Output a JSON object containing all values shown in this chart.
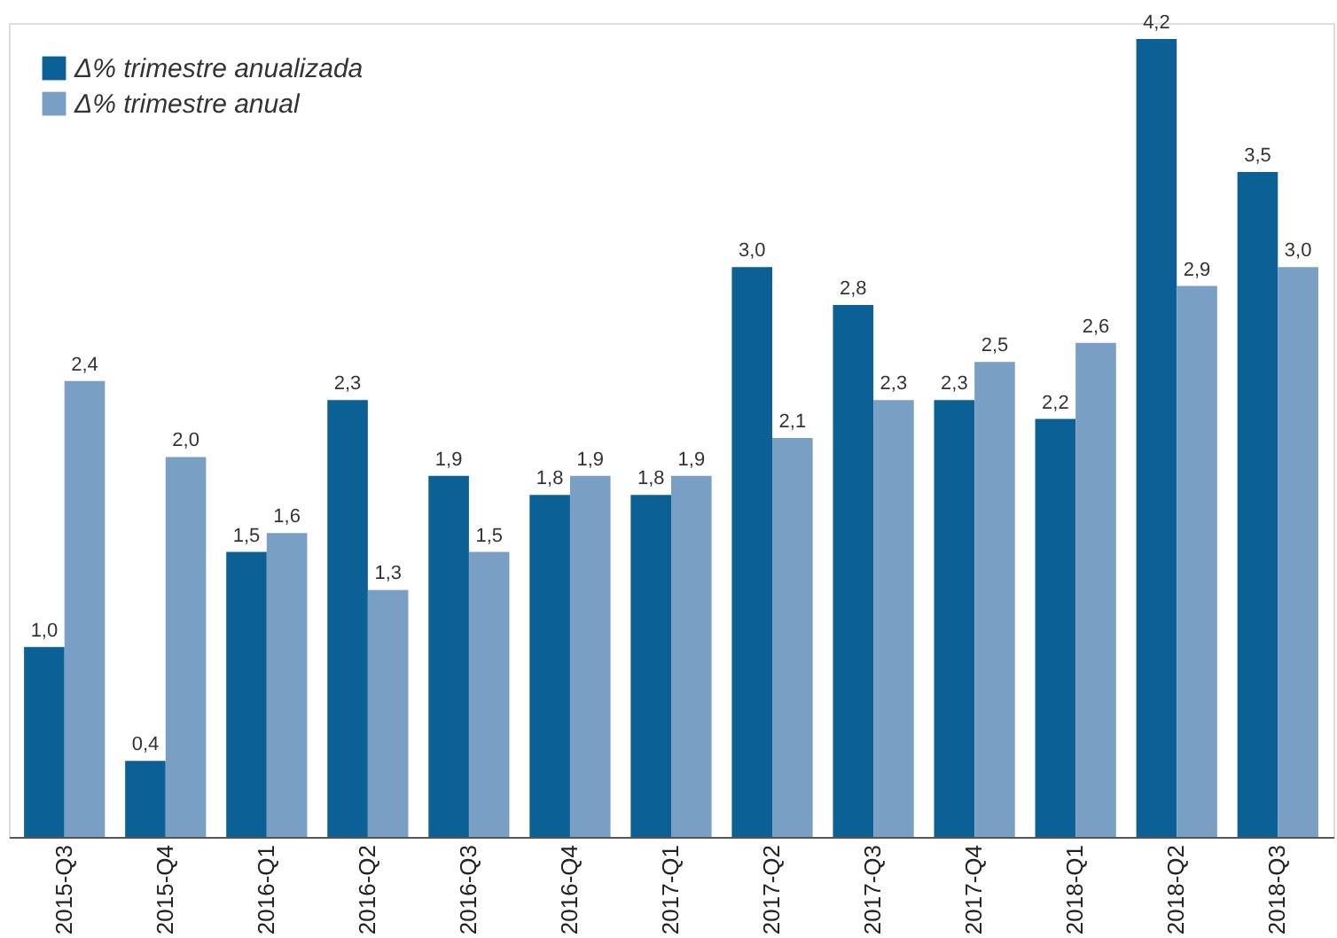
{
  "chart_data": {
    "type": "bar",
    "categories": [
      "2015-Q3",
      "2015-Q4",
      "2016-Q1",
      "2016-Q2",
      "2016-Q3",
      "2016-Q4",
      "2017-Q1",
      "2017-Q2",
      "2017-Q3",
      "2017-Q4",
      "2018-Q1",
      "2018-Q2",
      "2018-Q3"
    ],
    "series": [
      {
        "name": "Δ% trimestre anualizada",
        "color": "#0b6196",
        "values": [
          1.0,
          0.4,
          1.5,
          2.3,
          1.9,
          1.8,
          1.8,
          3.0,
          2.8,
          2.3,
          2.2,
          4.2,
          3.5
        ],
        "value_labels": [
          "1,0",
          "0,4",
          "1,5",
          "2,3",
          "1,9",
          "1,8",
          "1,8",
          "3,0",
          "2,8",
          "2,3",
          "2,2",
          "4,2",
          "3,5"
        ]
      },
      {
        "name": "Δ% trimestre anual",
        "color": "#7a9fc5",
        "values": [
          2.4,
          2.0,
          1.6,
          1.3,
          1.5,
          1.9,
          1.9,
          2.1,
          2.3,
          2.5,
          2.6,
          2.9,
          3.0
        ],
        "value_labels": [
          "2,4",
          "2,0",
          "1,6",
          "1,3",
          "1,5",
          "1,9",
          "1,9",
          "2,1",
          "2,3",
          "2,5",
          "2,6",
          "2,9",
          "3,0"
        ]
      }
    ],
    "legend": "top left",
    "grid": false
  }
}
